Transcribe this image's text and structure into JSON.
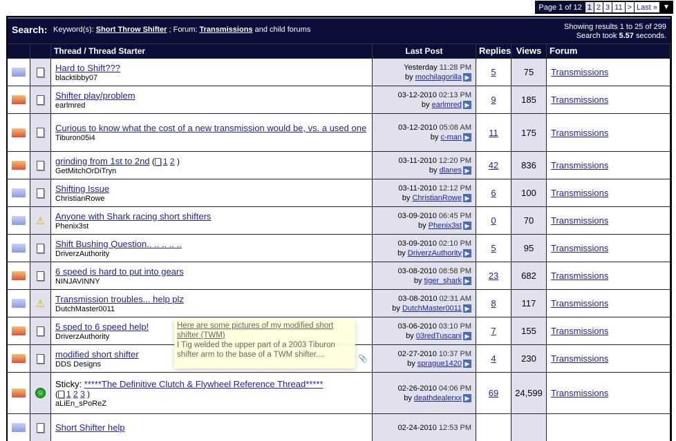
{
  "pager": {
    "label": "Page 1 of 12",
    "pages": [
      "1",
      "2",
      "3",
      "11",
      ">",
      "Last »"
    ],
    "current": "1"
  },
  "search": {
    "title": "Search:",
    "keywords_label": "Keyword(s):",
    "keywords": "Short Throw Shifter",
    "forum_label": "; Forum:",
    "forum": "Transmissions",
    "suffix": "and child forums",
    "results": "Showing results 1 to 25 of 299",
    "took_prefix": "Search took",
    "took": "5.57",
    "took_suffix": "seconds."
  },
  "columns": {
    "thread": "Thread / Thread Starter",
    "last_post": "Last Post",
    "replies": "Replies",
    "views": "Views",
    "forum": "Forum"
  },
  "threads": [
    {
      "status": "blue",
      "icon": "doc",
      "title": "Hard to Shift???",
      "starter": "blacktibby07",
      "date": "Yesterday",
      "time": "11:28 PM",
      "by": "mochilagorilla",
      "replies": "5",
      "views": "75",
      "forum": "Transmissions",
      "h": 40
    },
    {
      "status": "red",
      "icon": "doc",
      "title": "Shifter play/problem",
      "starter": "earlmred",
      "date": "03-12-2010",
      "time": "02:13 PM",
      "by": "earlmred",
      "replies": "9",
      "views": "185",
      "forum": "Transmissions",
      "h": 40
    },
    {
      "status": "red",
      "icon": "doc",
      "title": "Curious to know what the cost of a new transmission would be, vs. a used one",
      "starter": "Tiburon05i4",
      "date": "03-12-2010",
      "time": "05:08 AM",
      "by": "c-man",
      "replies": "11",
      "views": "175",
      "forum": "Transmissions",
      "h": 55
    },
    {
      "status": "red",
      "icon": "doc",
      "title": "grinding from 1st to 2nd",
      "pages": [
        "1",
        "2"
      ],
      "starter": "GetMitchOrDiTryn",
      "date": "03-11-2010",
      "time": "12:20 PM",
      "by": "dlanes",
      "replies": "42",
      "views": "836",
      "forum": "Transmissions",
      "h": 40
    },
    {
      "status": "blue",
      "icon": "doc",
      "title": "Shifting Issue",
      "starter": "ChristianRowe",
      "date": "03-11-2010",
      "time": "12:12 PM",
      "by": "ChristianRowe",
      "replies": "6",
      "views": "100",
      "forum": "Transmissions",
      "h": 40
    },
    {
      "status": "blue",
      "icon": "warning",
      "title": "Anyone with Shark racing short shifters",
      "starter": "Phenix3st",
      "date": "03-09-2010",
      "time": "06:45 PM",
      "by": "Phenix3st",
      "replies": "0",
      "views": "70",
      "forum": "Transmissions",
      "h": 40
    },
    {
      "status": "blue",
      "icon": "doc",
      "title": "Shift Bushing Question.. .. .. .. ..",
      "starter": "DriverzAuthority",
      "date": "03-09-2010",
      "time": "02:10 PM",
      "by": "DriverzAuthority",
      "replies": "5",
      "views": "95",
      "forum": "Transmissions",
      "h": 40
    },
    {
      "status": "red",
      "icon": "doc",
      "title": "6 speed is hard to put into gears",
      "starter": "NINJAVINNY",
      "date": "03-08-2010",
      "time": "08:58 PM",
      "by": "tiger_shark",
      "replies": "23",
      "views": "682",
      "forum": "Transmissions",
      "h": 40
    },
    {
      "status": "blue",
      "icon": "warning",
      "title": "Transmission troubles... help plz",
      "starter": "DutchMaster0011",
      "date": "03-08-2010",
      "time": "02:31 AM",
      "by": "DutchMaster0011",
      "replies": "8",
      "views": "117",
      "forum": "Transmissions",
      "h": 40
    },
    {
      "status": "red",
      "icon": "doc",
      "title": "5 sped to 6 speed help!",
      "starter": "DriverzAuthority",
      "date": "03-06-2010",
      "time": "03:10 PM",
      "by": "03redTuscani",
      "replies": "7",
      "views": "155",
      "forum": "Transmissions",
      "h": 40
    },
    {
      "status": "red",
      "icon": "doc",
      "title": "modified short shifter",
      "starter": "DDS Designs",
      "date": "02-27-2010",
      "time": "10:37 PM",
      "by": "sprague1420",
      "replies": "4",
      "views": "230",
      "forum": "Transmissions",
      "h": 40
    },
    {
      "status": "red",
      "icon": "smile",
      "prefix": "Sticky:",
      "title": "*****The Definitive Clutch & Flywheel Reference Thread*****",
      "pages": [
        "1",
        "2",
        "3"
      ],
      "starter": "aLiEn_sPoReZ",
      "date": "02-26-2010",
      "time": "04:06 PM",
      "by": "deathdealerxx",
      "replies": "69",
      "views": "24,599",
      "forum": "Transmissions",
      "h": 60
    },
    {
      "status": "blue",
      "icon": "doc",
      "title": "Short Shifter help",
      "starter": "",
      "date": "02-24-2010",
      "time": "12:53 PM",
      "by": "",
      "replies": "",
      "views": "",
      "forum": "",
      "h": 40
    }
  ],
  "by_label": "by",
  "tooltip": {
    "title": "Here are some pictures of my modified short shifter (TWM)",
    "body": "I Tig welded the upper part of a 2003 Tiburon shifter arm to the base of a TWM shifter...."
  }
}
